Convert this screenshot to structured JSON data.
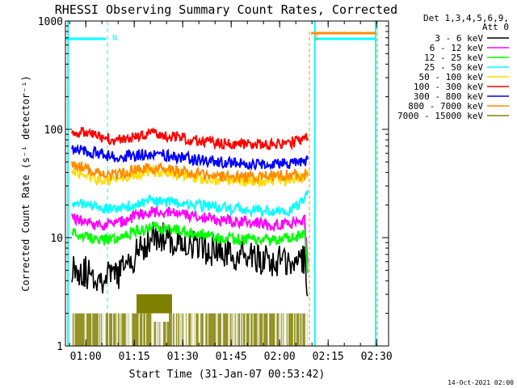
{
  "chart_data": {
    "type": "line",
    "title": "RHESSI Observing Summary Count Rates, Corrected",
    "xlabel": "Start Time (31-Jan-07 00:53:42)",
    "ylabel": "Corrected Count Rate (s⁻¹ detector⁻¹)",
    "ylim": [
      1,
      1000
    ],
    "yscale": "log",
    "x_unit": "minutes since 00:53:42",
    "xlim": [
      0,
      100
    ],
    "x_ticks": [
      {
        "label": "01:00",
        "value": 6.3
      },
      {
        "label": "01:15",
        "value": 21.3
      },
      {
        "label": "01:30",
        "value": 36.3
      },
      {
        "label": "01:45",
        "value": 51.3
      },
      {
        "label": "02:00",
        "value": 66.3
      },
      {
        "label": "02:15",
        "value": 81.3
      },
      {
        "label": "02:30",
        "value": 96.3
      }
    ],
    "y_ticks": [
      {
        "label": "1",
        "value": 1
      },
      {
        "label": "10",
        "value": 10
      },
      {
        "label": "100",
        "value": 100
      },
      {
        "label": "1000",
        "value": 1000
      }
    ],
    "legend_header": [
      "Det 1,3,4,5,6,9,",
      "Att 0"
    ],
    "legend_position": "right",
    "series": [
      {
        "name": "3 - 6 keV",
        "color": "#000000",
        "x": [
          2,
          10,
          16,
          22,
          27,
          32,
          40,
          48,
          56,
          64,
          70,
          74,
          75
        ],
        "y": [
          5.5,
          4.2,
          4.5,
          7.0,
          10.5,
          9.5,
          8.5,
          7.2,
          6.5,
          6.0,
          6.0,
          6.5,
          3.0
        ]
      },
      {
        "name": "6 - 12 keV",
        "color": "#ff00ff",
        "x": [
          2,
          10,
          16,
          22,
          27,
          32,
          40,
          48,
          56,
          64,
          70,
          74,
          75
        ],
        "y": [
          15.0,
          13.0,
          13.5,
          16.0,
          17.5,
          17.0,
          16.0,
          14.5,
          14.0,
          13.0,
          13.5,
          14.5,
          6.0
        ]
      },
      {
        "name": "12 - 25 keV",
        "color": "#00ff00",
        "x": [
          2,
          10,
          16,
          22,
          27,
          32,
          40,
          48,
          56,
          64,
          70,
          74,
          75
        ],
        "y": [
          11.0,
          9.5,
          9.5,
          11.5,
          12.5,
          12.0,
          11.0,
          10.0,
          9.5,
          9.5,
          10.0,
          11.0,
          5.0
        ]
      },
      {
        "name": "25 - 50 keV",
        "color": "#00ffff",
        "x": [
          2,
          10,
          16,
          22,
          27,
          32,
          40,
          48,
          56,
          64,
          70,
          74,
          75
        ],
        "y": [
          21.0,
          18.5,
          18.0,
          21.0,
          22.0,
          21.0,
          20.0,
          19.0,
          18.0,
          17.5,
          18.0,
          23.0,
          27.0
        ]
      },
      {
        "name": "50 - 100 keV",
        "color": "#ffdd00",
        "x": [
          2,
          10,
          16,
          22,
          27,
          32,
          40,
          48,
          56,
          64,
          70,
          74,
          75
        ],
        "y": [
          42.0,
          34.0,
          34.0,
          38.0,
          41.0,
          39.0,
          36.0,
          34.0,
          33.0,
          33.0,
          34.0,
          37.0,
          38.0
        ]
      },
      {
        "name": "100 - 300 keV",
        "color": "#ff0000",
        "x": [
          2,
          10,
          16,
          22,
          27,
          32,
          40,
          48,
          56,
          64,
          70,
          74,
          75
        ],
        "y": [
          98.0,
          85.0,
          80.0,
          86.0,
          91.0,
          87.0,
          80.0,
          75.0,
          73.0,
          74.0,
          76.0,
          80.0,
          82.0
        ]
      },
      {
        "name": "300 - 800 keV",
        "color": "#0000ff",
        "x": [
          2,
          10,
          16,
          22,
          27,
          32,
          40,
          48,
          56,
          64,
          70,
          74,
          75
        ],
        "y": [
          68.0,
          60.0,
          55.0,
          58.0,
          60.0,
          57.0,
          53.0,
          50.0,
          48.0,
          48.0,
          48.0,
          50.0,
          51.0
        ]
      },
      {
        "name": "800 - 7000 keV",
        "color": "#ff8c00",
        "x": [
          2,
          10,
          16,
          22,
          27,
          32,
          40,
          48,
          56,
          64,
          70,
          74,
          75
        ],
        "y": [
          48.0,
          40.0,
          38.0,
          42.0,
          44.0,
          42.0,
          39.0,
          37.0,
          36.0,
          37.0,
          38.0,
          38.0,
          38.0
        ]
      },
      {
        "name": "7000 - 15000 keV",
        "color": "#808000",
        "x": [
          2,
          10,
          16,
          22,
          27,
          32,
          40,
          48,
          56,
          64,
          70,
          74,
          75
        ],
        "y": [
          2.0,
          2.0,
          2.0,
          2.5,
          2.5,
          2.5,
          2.0,
          2.0,
          2.0,
          2.0,
          2.0,
          2.0,
          2.0
        ]
      }
    ],
    "annotations": [
      {
        "label": "N",
        "x": 13.0,
        "color": "#00ffff"
      },
      {
        "label": "S",
        "x": 75.5,
        "color": "#ff8c00"
      }
    ]
  },
  "footer": {
    "timestamp": "14-Oct-2021 02:00"
  },
  "colors": {
    "axes": "#000000",
    "cyan_marker": "#00ffff",
    "orange_marker": "#ff8c00"
  }
}
